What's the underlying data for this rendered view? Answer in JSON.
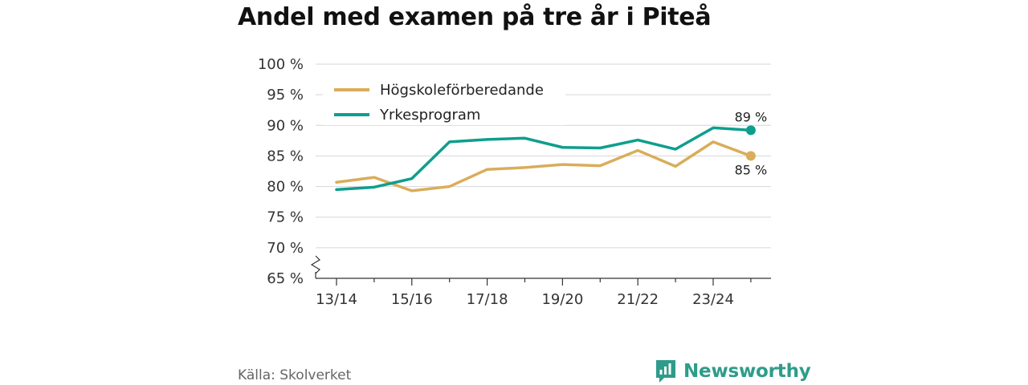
{
  "title": "Andel med examen på tre år i Piteå",
  "source": "Källa: Skolverket",
  "brand": {
    "name": "Newsworthy",
    "icon": "newsworthy-logo-icon",
    "color": "#2e9c8a"
  },
  "chart_data": {
    "type": "line",
    "title": "Andel med examen på tre år i Piteå",
    "x": [
      "13/14",
      "14/15",
      "15/16",
      "16/17",
      "17/18",
      "18/19",
      "19/20",
      "20/21",
      "21/22",
      "22/23",
      "23/24",
      "24/25"
    ],
    "x_tick_labels": [
      "13/14",
      "15/16",
      "17/18",
      "19/20",
      "21/22",
      "23/24"
    ],
    "y_ticks": [
      65,
      70,
      75,
      80,
      85,
      90,
      95,
      100
    ],
    "y_tick_labels": [
      "65 %",
      "70 %",
      "75 %",
      "80 %",
      "85 %",
      "90 %",
      "95 %",
      "100 %"
    ],
    "ylim": [
      65,
      100
    ],
    "y_axis_break": true,
    "grid": "horizontal",
    "legend_position": "top-left",
    "series": [
      {
        "name": "Högskoleförberedande",
        "color": "#d9ad5b",
        "values": [
          80.7,
          81.5,
          79.3,
          80.0,
          82.8,
          83.1,
          83.6,
          83.4,
          85.9,
          83.3,
          87.3,
          85.0
        ],
        "end_label": "85 %"
      },
      {
        "name": "Yrkesprogram",
        "color": "#0e9e8e",
        "values": [
          79.5,
          79.9,
          81.3,
          87.3,
          87.7,
          87.9,
          86.4,
          86.3,
          87.6,
          86.1,
          89.6,
          89.2
        ],
        "end_label": "89 %"
      }
    ]
  }
}
